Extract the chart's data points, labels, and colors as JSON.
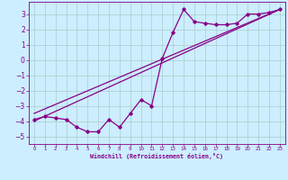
{
  "bg_color": "#cceeff",
  "grid_color": "#aacccc",
  "line_color": "#880088",
  "xlabel": "Windchill (Refroidissement éolien,°C)",
  "xlabel_color": "#880088",
  "tick_color": "#880088",
  "xlim": [
    -0.5,
    23.5
  ],
  "ylim": [
    -5.5,
    3.8
  ],
  "yticks": [
    -5,
    -4,
    -3,
    -2,
    -1,
    0,
    1,
    2,
    3
  ],
  "xticks": [
    0,
    1,
    2,
    3,
    4,
    5,
    6,
    7,
    8,
    9,
    10,
    11,
    12,
    13,
    14,
    15,
    16,
    17,
    18,
    19,
    20,
    21,
    22,
    23
  ],
  "data_x": [
    0,
    1,
    2,
    3,
    4,
    5,
    6,
    7,
    8,
    9,
    10,
    11,
    12,
    13,
    14,
    15,
    16,
    17,
    18,
    19,
    20,
    21,
    22,
    23
  ],
  "data_y": [
    -3.9,
    -3.7,
    -3.8,
    -3.9,
    -4.4,
    -4.7,
    -4.7,
    -3.9,
    -4.4,
    -3.5,
    -2.6,
    -3.0,
    0.1,
    1.8,
    3.3,
    2.5,
    2.4,
    2.3,
    2.3,
    2.4,
    3.0,
    3.0,
    3.1,
    3.3
  ],
  "line1_x": [
    0,
    23
  ],
  "line1_y": [
    -4.0,
    3.3
  ],
  "line2_x": [
    0,
    23
  ],
  "line2_y": [
    -3.5,
    3.3
  ]
}
